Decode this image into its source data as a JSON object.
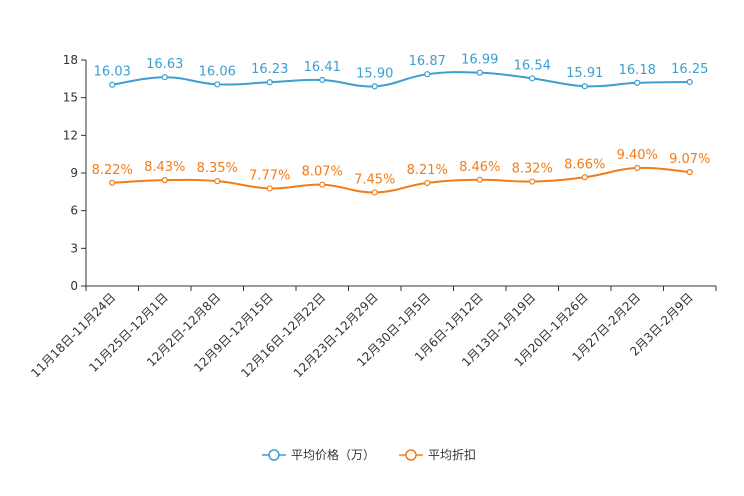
{
  "chart_data": {
    "type": "line",
    "title": "",
    "xlabel": "",
    "ylabel": "",
    "ylim": [
      0,
      18
    ],
    "yticks": [
      0,
      3,
      6,
      9,
      12,
      15,
      18
    ],
    "grid": false,
    "legend_position": "bottom-center",
    "categories": [
      "11月18日-11月24日",
      "11月25日-12月1日",
      "12月2日-12月8日",
      "12月9日-12月15日",
      "12月16日-12月22日",
      "12月23日-12月29日",
      "12月30日-1月5日",
      "1月6日-1月12日",
      "1月13日-1月19日",
      "1月20日-1月26日",
      "1月27日-2月2日",
      "2月3日-2月9日"
    ],
    "series": [
      {
        "name": "平均价格（万）",
        "color": "#3d9fd0",
        "values": [
          16.03,
          16.63,
          16.06,
          16.23,
          16.41,
          15.9,
          16.87,
          16.99,
          16.54,
          15.91,
          16.18,
          16.25
        ],
        "labels": [
          "16.03",
          "16.63",
          "16.06",
          "16.23",
          "16.41",
          "15.90",
          "16.87",
          "16.99",
          "16.54",
          "15.91",
          "16.18",
          "16.25"
        ]
      },
      {
        "name": "平均折扣",
        "color": "#f07d1a",
        "values": [
          8.22,
          8.43,
          8.35,
          7.77,
          8.07,
          7.45,
          8.21,
          8.46,
          8.32,
          8.66,
          9.4,
          9.07
        ],
        "labels": [
          "8.22%",
          "8.43%",
          "8.35%",
          "7.77%",
          "8.07%",
          "7.45%",
          "8.21%",
          "8.46%",
          "8.32%",
          "8.66%",
          "9.40%",
          "9.07%"
        ]
      }
    ]
  }
}
